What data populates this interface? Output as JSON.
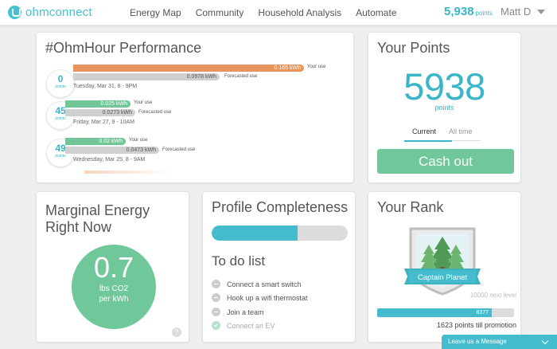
{
  "header": {
    "logo_text": "ohmconnect",
    "nav": [
      "Energy Map",
      "Community",
      "Household Analysis",
      "Automate"
    ],
    "points_value": "5,938",
    "points_label": "points",
    "user_name": "Matt D"
  },
  "performance": {
    "title": "#OhmHour Performance",
    "your_use_label": "Your use",
    "forecasted_label": "Forecasted use",
    "events": [
      {
        "points": "0",
        "points_unit": "points",
        "use": "0.165 kWh",
        "forecast": "0.0978 kWh",
        "date": "Tuesday, Mar 31, 8 - 9PM",
        "use_color": "#e8945c"
      },
      {
        "points": "45",
        "points_unit": "points",
        "use": "0.025 kWh",
        "forecast": "0.0273 kWh",
        "date": "Friday, Mar 27, 9 - 10AM",
        "use_color": "#72c596"
      },
      {
        "points": "49",
        "points_unit": "points",
        "use": "0.02 kWh",
        "forecast": "0.0473 kWh",
        "date": "Wednesday, Mar 25, 8 - 9AM",
        "use_color": "#72c596"
      }
    ]
  },
  "points_card": {
    "title": "Your Points",
    "value": "5938",
    "unit": "points",
    "tab_current": "Current",
    "tab_alltime": "All time",
    "cashout": "Cash out"
  },
  "marginal": {
    "title_line1": "Marginal Energy",
    "title_line2": "Right Now",
    "value": "0.7",
    "unit_line1": "lbs CO2",
    "unit_line2": "per kWh",
    "help": "?"
  },
  "profile": {
    "title": "Profile Completeness",
    "progress": 0.63,
    "todo_title": "To do list",
    "todos": [
      {
        "label": "Connect a smart switch",
        "done": false
      },
      {
        "label": "Hook up a wifi thermostat",
        "done": false
      },
      {
        "label": "Join a team",
        "done": false
      },
      {
        "label": "Connect an EV",
        "done": true
      }
    ]
  },
  "rank": {
    "title": "Your Rank",
    "badge_label": "Captain Planet",
    "next_level": "10000 next level",
    "current": "8377",
    "progress": 0.8377,
    "promotion": "1623 points till promotion"
  },
  "chat": {
    "label": "Leave us a Message"
  },
  "colors": {
    "accent": "#3ab6c8",
    "green": "#6fc79a",
    "orange": "#e8945c"
  }
}
